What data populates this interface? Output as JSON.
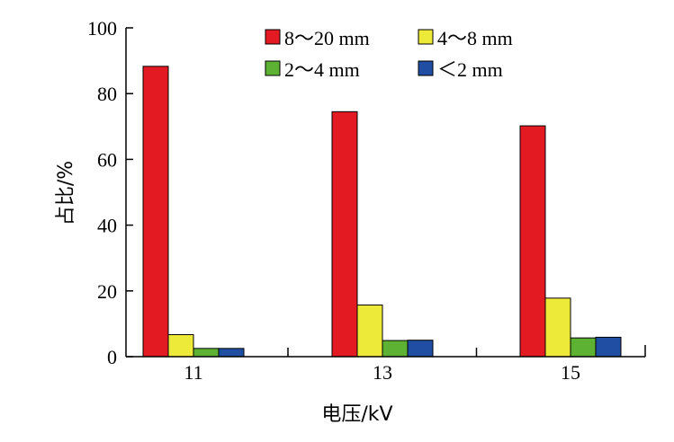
{
  "chart_data": {
    "type": "bar",
    "categories": [
      "11",
      "13",
      "15"
    ],
    "series": [
      {
        "name": "8～20 mm",
        "values": [
          88.3,
          74.5,
          70.2
        ],
        "color": "#e41a23"
      },
      {
        "name": "4～8 mm",
        "values": [
          6.7,
          15.7,
          17.8
        ],
        "color": "#eeea3a"
      },
      {
        "name": "2～4 mm",
        "values": [
          2.5,
          4.9,
          5.7
        ],
        "color": "#5db233"
      },
      {
        "name": "＜2 mm",
        "values": [
          2.5,
          5.0,
          5.9
        ],
        "color": "#1f4ea3"
      }
    ],
    "xlabel": "电压/kV",
    "ylabel": "占比/%",
    "ylim": [
      0,
      100
    ],
    "yticks": [
      "0",
      "20",
      "40",
      "60",
      "80",
      "100"
    ],
    "grid": false,
    "legend": "top-right"
  }
}
